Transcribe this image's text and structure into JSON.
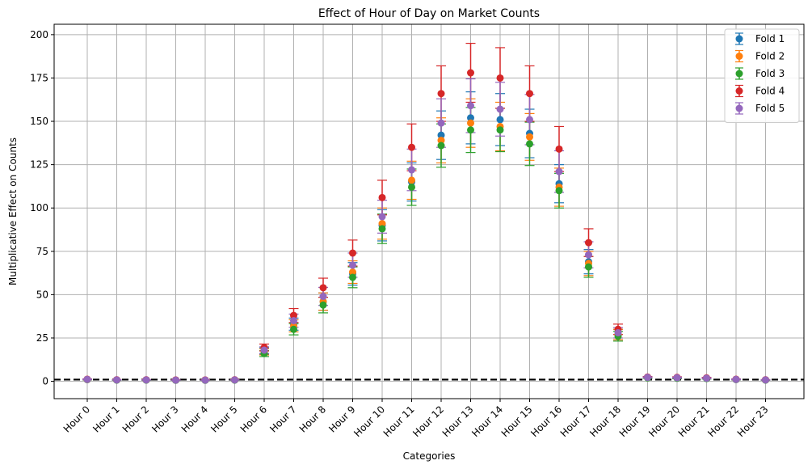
{
  "chart_data": {
    "type": "scatter",
    "title": "Effect of Hour of Day on Market Counts",
    "xlabel": "Categories",
    "ylabel": "Multiplicative Effect on Counts",
    "categories": [
      "Hour 0",
      "Hour 1",
      "Hour 2",
      "Hour 3",
      "Hour 4",
      "Hour 5",
      "Hour 6",
      "Hour 7",
      "Hour 8",
      "Hour 9",
      "Hour 10",
      "Hour 11",
      "Hour 12",
      "Hour 13",
      "Hour 14",
      "Hour 15",
      "Hour 16",
      "Hour 17",
      "Hour 18",
      "Hour 19",
      "Hour 20",
      "Hour 21",
      "Hour 22",
      "Hour 23"
    ],
    "ylim": [
      -10,
      206
    ],
    "yticks": [
      0,
      25,
      50,
      75,
      100,
      125,
      150,
      175,
      200
    ],
    "grid": true,
    "legend_position": "top-right",
    "reference_line": {
      "y": 1,
      "style": "dashed",
      "color": "#000000"
    },
    "series": [
      {
        "name": "Fold 1",
        "color": "#1f77b4",
        "values": [
          1.1,
          0.8,
          0.8,
          0.7,
          0.7,
          0.8,
          17.5,
          33,
          46,
          62,
          90,
          115,
          142,
          152,
          151,
          143,
          114,
          69,
          27,
          2.2,
          2.0,
          1.8,
          1.1,
          0.8
        ],
        "errors": [
          0.2,
          0.1,
          0.1,
          0.1,
          0.1,
          0.1,
          1.8,
          3.5,
          5,
          6.5,
          9,
          11,
          14,
          15,
          15,
          14,
          11,
          7,
          3,
          0.3,
          0.3,
          0.3,
          0.2,
          0.1
        ]
      },
      {
        "name": "Fold 2",
        "color": "#ff7f0e",
        "values": [
          1.0,
          0.8,
          0.8,
          0.7,
          0.7,
          0.8,
          17,
          32,
          46,
          63,
          91,
          116,
          139,
          149,
          147,
          141,
          112,
          68,
          27,
          2.2,
          2.0,
          1.8,
          1.1,
          0.8
        ],
        "errors": [
          0.2,
          0.1,
          0.1,
          0.1,
          0.1,
          0.1,
          1.8,
          3.5,
          5,
          6.5,
          9,
          11,
          13,
          14,
          14,
          13.5,
          11,
          7,
          3,
          0.3,
          0.3,
          0.3,
          0.2,
          0.1
        ]
      },
      {
        "name": "Fold 3",
        "color": "#2ca02c",
        "values": [
          1.0,
          0.7,
          0.7,
          0.6,
          0.6,
          0.7,
          16,
          30,
          44,
          60,
          88,
          112,
          136,
          145,
          145,
          137,
          110,
          66,
          26,
          2.0,
          1.8,
          1.6,
          1.0,
          0.7
        ],
        "errors": [
          0.2,
          0.1,
          0.1,
          0.1,
          0.1,
          0.1,
          1.7,
          3.2,
          4.5,
          6,
          8.5,
          10.5,
          12.5,
          13,
          12.5,
          12.5,
          10,
          6,
          2.8,
          0.3,
          0.3,
          0.3,
          0.2,
          0.1
        ]
      },
      {
        "name": "Fold 4",
        "color": "#d62728",
        "values": [
          1.2,
          0.9,
          0.9,
          0.8,
          0.8,
          0.9,
          19.5,
          38,
          54,
          74,
          106,
          135,
          166,
          178,
          175,
          166,
          134,
          80,
          30,
          2.5,
          2.3,
          2.0,
          1.2,
          0.9
        ],
        "errors": [
          0.2,
          0.1,
          0.1,
          0.1,
          0.1,
          0.1,
          2,
          4,
          5.5,
          7.5,
          10,
          13.5,
          16,
          17,
          17.5,
          16,
          13,
          8,
          3,
          0.3,
          0.3,
          0.3,
          0.2,
          0.1
        ]
      },
      {
        "name": "Fold 5",
        "color": "#9467bd",
        "values": [
          1.1,
          0.8,
          0.8,
          0.7,
          0.7,
          0.8,
          18,
          35,
          49,
          67,
          95,
          122,
          149,
          159,
          157,
          151,
          121,
          73,
          28,
          2.3,
          2.1,
          1.8,
          1.1,
          0.8
        ],
        "errors": [
          0.2,
          0.1,
          0.1,
          0.1,
          0.1,
          0.1,
          1.9,
          3.8,
          5.2,
          7,
          9.5,
          12,
          14,
          15.5,
          15.5,
          14.5,
          12,
          7.5,
          3,
          0.3,
          0.3,
          0.3,
          0.2,
          0.1
        ]
      }
    ]
  }
}
